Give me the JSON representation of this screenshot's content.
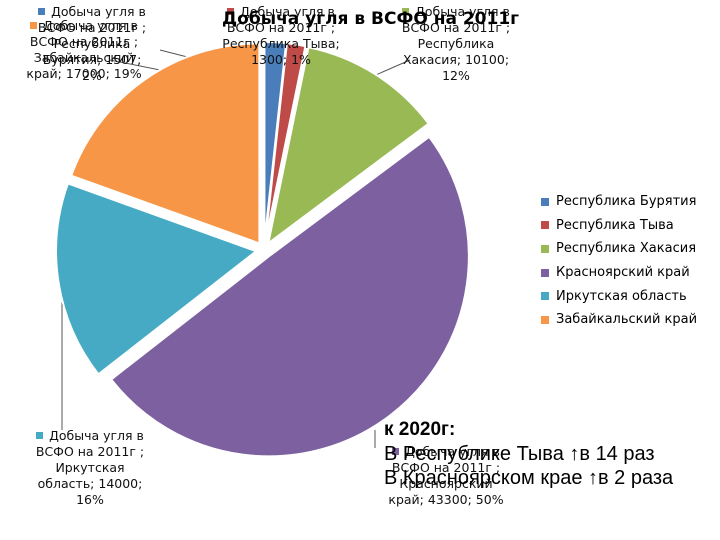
{
  "chart_data": {
    "type": "pie",
    "title": "Добыча угля в ВСФО на 2011г",
    "series_name": "Добыча угля в ВСФО на 2011г",
    "categories": [
      "Республика Бурятия",
      "Республика Тыва",
      "Республика Хакасия",
      "Красноярский край",
      "Иркутская область",
      "Забайкальский край"
    ],
    "values": [
      1507,
      1300,
      10100,
      43300,
      14000,
      17000
    ],
    "percent_labels": [
      "2%",
      "1%",
      "12%",
      "50%",
      "16%",
      "19%"
    ],
    "colors": [
      "#4a7ebb",
      "#be4b48",
      "#98b954",
      "#7d60a0",
      "#46aac5",
      "#f79646"
    ],
    "exploded": true,
    "legend_position": "right",
    "data_labels": [
      {
        "lines": [
          "Добыча угля в",
          "ВСФО на 2011г ;",
          "Республика",
          "Бурятия; 1507;",
          "2%"
        ]
      },
      {
        "lines": [
          "Добыча угля в",
          "ВСФО на 2011г ;",
          "Республика Тыва;",
          "1300; 1%"
        ]
      },
      {
        "lines": [
          "Добыча угля в",
          "ВСФО на 2011г ;",
          "Республика",
          "Хакасия; 10100;",
          "12%"
        ]
      },
      {
        "lines": [
          "Добыча угля в",
          "ВСФО на 2011г ;",
          "Красноярский",
          "край; 43300; 50%"
        ]
      },
      {
        "lines": [
          "Добыча угля в",
          "ВСФО на 2011г ;",
          "Иркутская",
          "область; 14000;",
          "16%"
        ]
      },
      {
        "lines": [
          "Добыча угля в",
          "ВСФО на 2011г ;",
          "Забайкальский",
          "край; 17000; 19%"
        ]
      }
    ]
  },
  "note": {
    "heading": "к 2020г:",
    "lines": [
      "В Республике Тыва ↑в 14 раз",
      "В Красноярском крае ↑в 2 раза"
    ]
  }
}
